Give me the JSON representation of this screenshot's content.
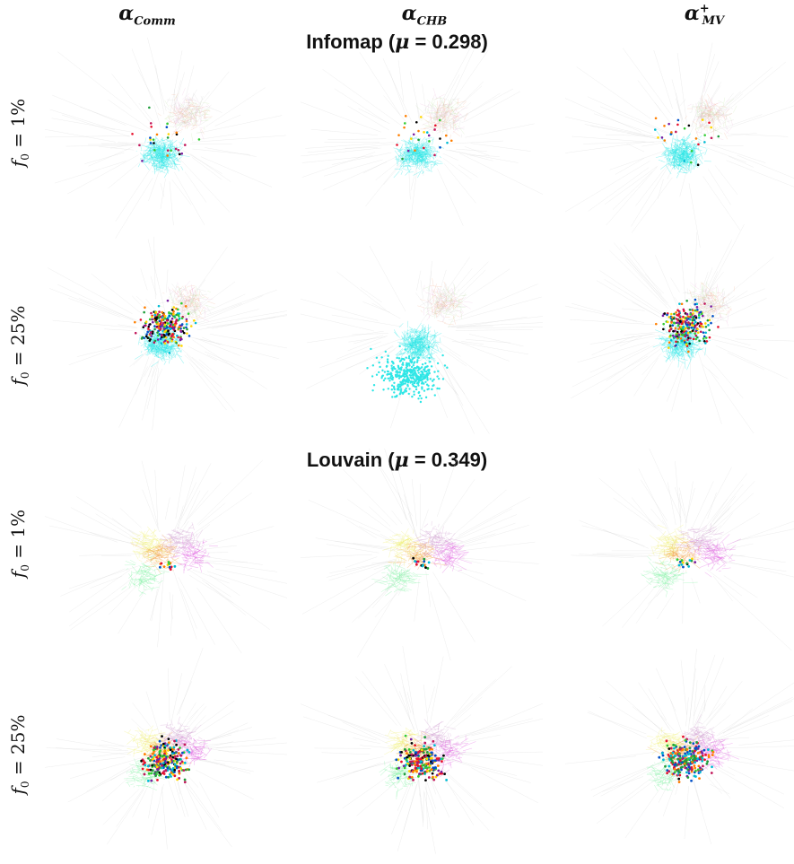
{
  "columns": [
    {
      "symbol": "α",
      "sub": "Comm",
      "sup": ""
    },
    {
      "symbol": "α",
      "sub": "CHB",
      "sup": ""
    },
    {
      "symbol": "α",
      "sub": "MV",
      "sup": "+"
    }
  ],
  "sections": [
    {
      "algorithm": "Infomap",
      "mu_value": "0.298",
      "rows": [
        {
          "f0_label": "f",
          "f0_sub": "0",
          "f0_value": "= 1%"
        },
        {
          "f0_label": "f",
          "f0_sub": "0",
          "f0_value": "= 25%"
        }
      ]
    },
    {
      "algorithm": "Louvain",
      "mu_value": "0.349",
      "rows": [
        {
          "f0_label": "f",
          "f0_sub": "0",
          "f0_value": "= 1%"
        },
        {
          "f0_label": "f",
          "f0_sub": "0",
          "f0_value": "= 25%"
        }
      ]
    }
  ],
  "mu_symbol": "μ",
  "colors": {
    "infomap_main": "#2ee6e6",
    "infomap_secondary": [
      "#f2a07a",
      "#e8b0d8",
      "#b9e39a",
      "#c9c9c9"
    ],
    "louvain_main": [
      "#7cf2a0",
      "#f2a040",
      "#e060e0",
      "#f0f070",
      "#d0a0d0"
    ],
    "seed_colors": [
      "#e8112d",
      "#ff7f00",
      "#1f9e3c",
      "#7a1fa2",
      "#000000",
      "#00bcd4",
      "#c2185b",
      "#33cc33",
      "#0050c8",
      "#ffd700"
    ]
  }
}
